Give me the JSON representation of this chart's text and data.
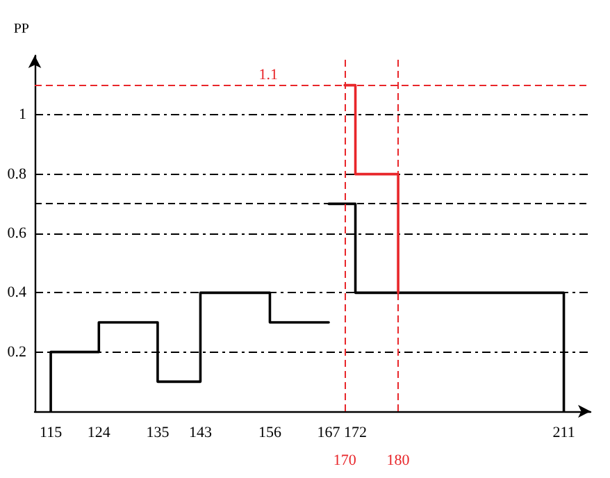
{
  "chart_data": {
    "type": "line",
    "ylabel": "PP",
    "xlim": [
      112,
      216
    ],
    "xticks": [
      115,
      124,
      135,
      143,
      156,
      167,
      172,
      211
    ],
    "ylim": [
      0,
      1.2
    ],
    "yticks": [
      0.2,
      0.4,
      0.6,
      0.8,
      1
    ],
    "grid": "y",
    "marker": "none",
    "line_style": "solid",
    "series": [
      {
        "color": "#000000",
        "x": [
          115,
          115,
          124,
          124,
          135,
          135,
          143,
          143,
          156,
          156,
          167
        ],
        "values": [
          0,
          0.2,
          0.2,
          0.3,
          0.3,
          0.1,
          0.1,
          0.4,
          0.4,
          0.3,
          0.3
        ]
      },
      {
        "color": "#000000",
        "x": [
          167,
          172,
          172,
          211,
          211
        ],
        "values": [
          0.7,
          0.7,
          0.4,
          0.4,
          0
        ]
      },
      {
        "color": "#e8262a",
        "x": [
          170,
          172,
          172,
          180,
          180
        ],
        "values": [
          1.1,
          1.1,
          0.8,
          0.8,
          0.4
        ]
      }
    ],
    "ref_lines": [
      {
        "axis": "y",
        "value": 1.1,
        "label": "1.1",
        "color": "#e8262a",
        "line_style": "dashed"
      },
      {
        "axis": "y",
        "value": 0.7,
        "label": null,
        "color": "#000000",
        "line_style": "dashed"
      },
      {
        "axis": "x",
        "value": 170,
        "label": "170",
        "color": "#e8262a",
        "line_style": "dashed"
      },
      {
        "axis": "x",
        "value": 180,
        "label": "180",
        "color": "#e8262a",
        "line_style": "dashed"
      }
    ]
  }
}
